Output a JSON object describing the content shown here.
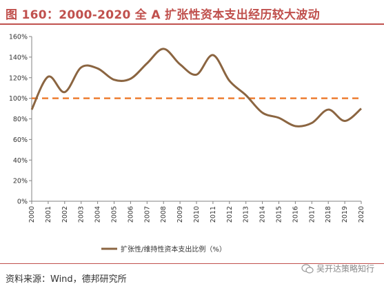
{
  "title": "图 160：2000-2020 全 A 扩张性资本支出经历较大波动",
  "source": "资料来源：Wind，德邦研究所",
  "watermark": "吴开达策略知行",
  "colors": {
    "line": "#8b6541",
    "reference": "#ed7d31",
    "title": "#c0504d",
    "axis": "#808080"
  },
  "chart_data": {
    "type": "line",
    "x": [
      "2000",
      "2001",
      "2002",
      "2003",
      "2004",
      "2005",
      "2006",
      "2007",
      "2008",
      "2009",
      "2010",
      "2011",
      "2012",
      "2013",
      "2014",
      "2015",
      "2016",
      "2017",
      "2018",
      "2019",
      "2020"
    ],
    "series": [
      {
        "name": "扩张性/维持性资本支出比例（%）",
        "values": [
          89,
          121,
          106,
          130,
          129,
          118,
          119,
          134,
          148,
          133,
          123,
          142,
          117,
          103,
          86,
          81,
          73,
          76,
          89,
          78,
          90
        ]
      }
    ],
    "reference_line": {
      "y": 100,
      "style": "dashed"
    },
    "yticks": [
      "0%",
      "20%",
      "40%",
      "60%",
      "80%",
      "100%",
      "120%",
      "140%",
      "160%"
    ],
    "ylim": [
      0,
      160
    ],
    "legend_position": "bottom-center",
    "grid": false
  }
}
